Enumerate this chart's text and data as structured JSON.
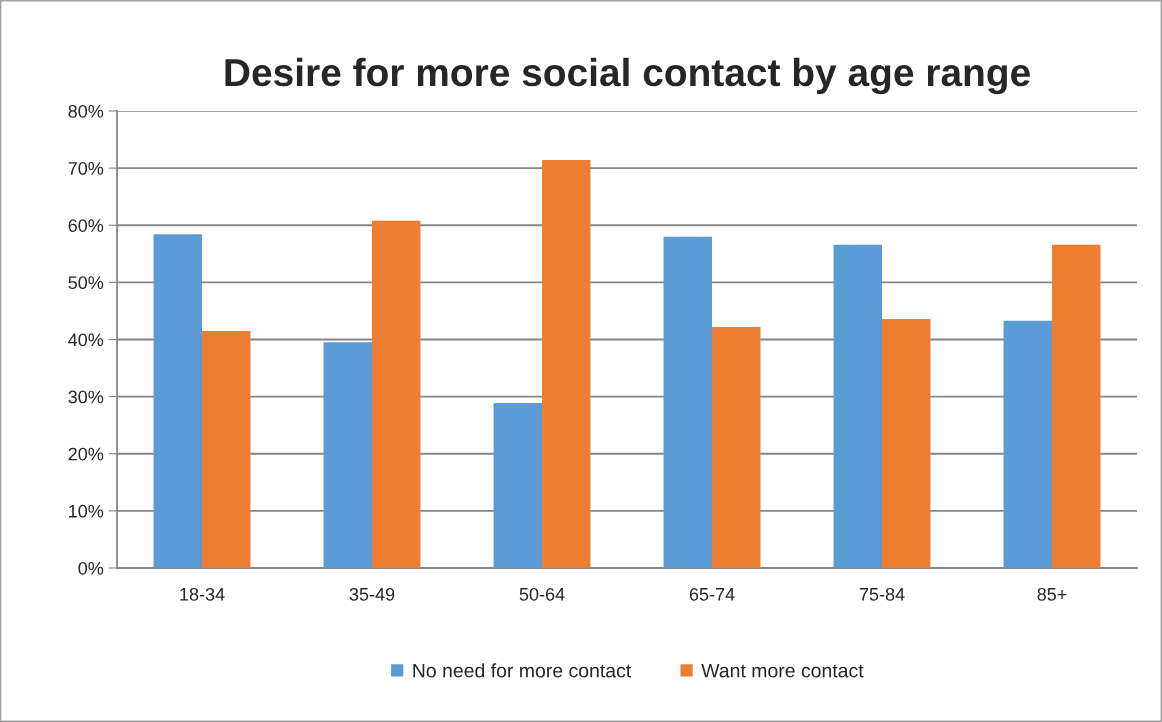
{
  "chart_data": {
    "type": "bar",
    "title": "Desire for more social contact by age range",
    "categories": [
      "18-34",
      "35-49",
      "50-64",
      "65-74",
      "75-84",
      "85+"
    ],
    "series": [
      {
        "name": "No need for more contact",
        "color": "#5b9bd5",
        "values": [
          58.4,
          39.5,
          28.9,
          58.0,
          56.6,
          43.3
        ]
      },
      {
        "name": "Want more contact",
        "color": "#ed7d31",
        "values": [
          41.5,
          60.8,
          71.4,
          42.2,
          43.6,
          56.6
        ]
      }
    ],
    "ylim": [
      0,
      80
    ],
    "yticks": [
      {
        "value": 0,
        "label": "0%"
      },
      {
        "value": 10,
        "label": "10%"
      },
      {
        "value": 20,
        "label": "20%"
      },
      {
        "value": 30,
        "label": "30%"
      },
      {
        "value": 40,
        "label": "40%"
      },
      {
        "value": 50,
        "label": "50%"
      },
      {
        "value": 60,
        "label": "60%"
      },
      {
        "value": 70,
        "label": "70%"
      },
      {
        "value": 80,
        "label": "80%"
      }
    ],
    "grid": "y",
    "legend": "bottom"
  }
}
